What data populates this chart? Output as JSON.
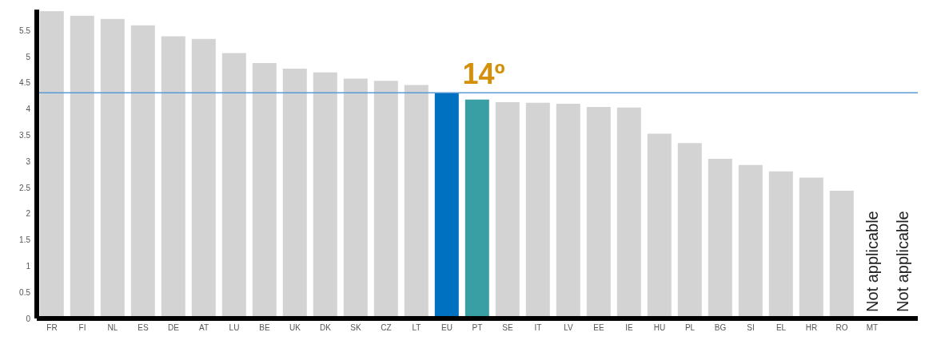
{
  "chart_data": {
    "type": "bar",
    "categories": [
      "FR",
      "FI",
      "NL",
      "ES",
      "DE",
      "AT",
      "LU",
      "BE",
      "UK",
      "DK",
      "SK",
      "CZ",
      "LT",
      "EU",
      "PT",
      "SE",
      "IT",
      "LV",
      "EE",
      "IE",
      "HU",
      "PL",
      "BG",
      "SI",
      "EL",
      "HR",
      "RO",
      "MT",
      null
    ],
    "values": [
      5.87,
      5.78,
      5.72,
      5.6,
      5.39,
      5.34,
      5.07,
      4.88,
      4.77,
      4.7,
      4.58,
      4.54,
      4.46,
      4.31,
      4.18,
      4.13,
      4.12,
      4.1,
      4.04,
      4.03,
      3.53,
      3.35,
      3.05,
      2.93,
      2.81,
      2.69,
      2.44,
      null,
      null
    ],
    "colors": [
      "#d3d3d3",
      "#d3d3d3",
      "#d3d3d3",
      "#d3d3d3",
      "#d3d3d3",
      "#d3d3d3",
      "#d3d3d3",
      "#d3d3d3",
      "#d3d3d3",
      "#d3d3d3",
      "#d3d3d3",
      "#d3d3d3",
      "#d3d3d3",
      "#0070c0",
      "#3a9ea5",
      "#d3d3d3",
      "#d3d3d3",
      "#d3d3d3",
      "#d3d3d3",
      "#d3d3d3",
      "#d3d3d3",
      "#d3d3d3",
      "#d3d3d3",
      "#d3d3d3",
      "#d3d3d3",
      "#d3d3d3",
      "#d3d3d3",
      "#d3d3d3",
      "#d3d3d3"
    ],
    "ylim": [
      0,
      5.9
    ],
    "yticks": [
      0,
      0.5,
      1,
      1.5,
      2,
      2.5,
      3,
      3.5,
      4,
      4.5,
      5,
      5.5
    ],
    "grid": false,
    "legend": false,
    "ref_lines": [
      {
        "axis": "y",
        "value": 4.31,
        "color": "#5b9bd5"
      }
    ],
    "annotations": [
      {
        "text": "14º",
        "x": "PT",
        "y": 4.18
      },
      "Not applicable",
      "Not applicable"
    ]
  }
}
